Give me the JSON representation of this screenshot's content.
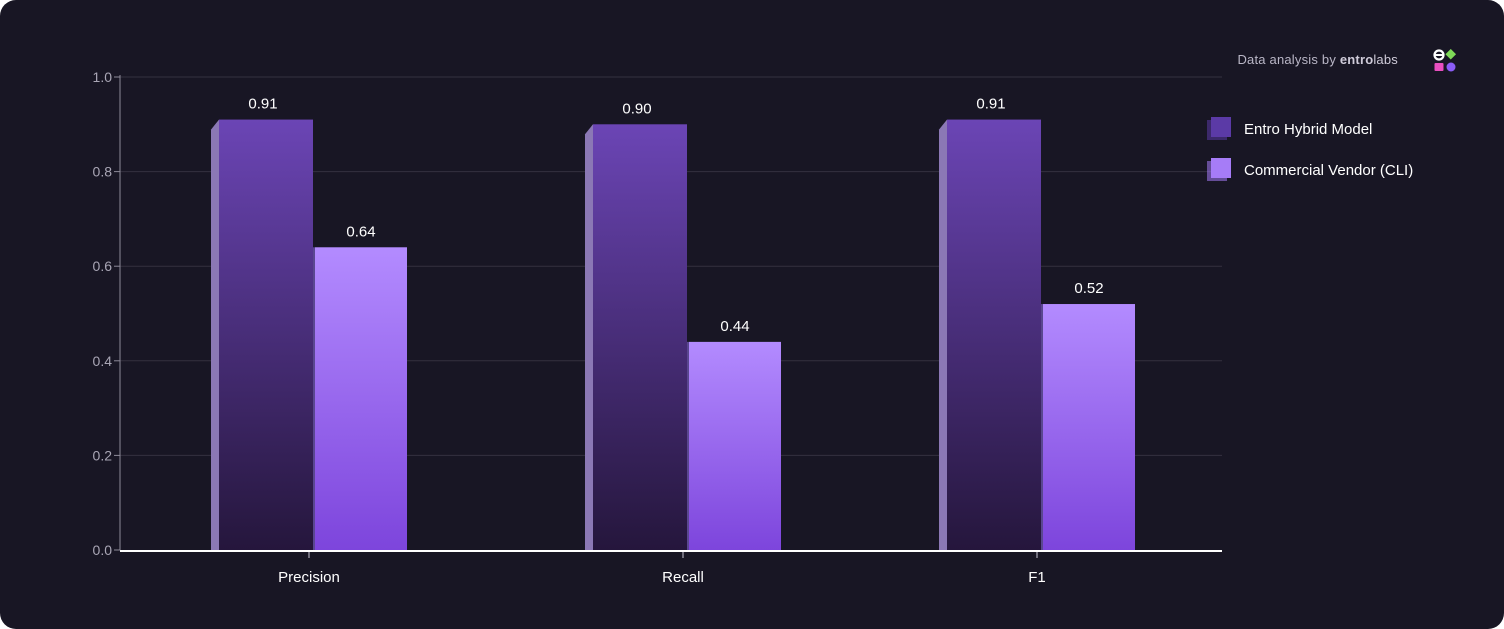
{
  "brand": {
    "prefix": "Data analysis by ",
    "name_bold": "entro",
    "name_light": "labs"
  },
  "chart_data": {
    "type": "bar",
    "categories": [
      "Precision",
      "Recall",
      "F1"
    ],
    "series": [
      {
        "name": "Entro Hybrid Model",
        "values": [
          0.91,
          0.9,
          0.91
        ],
        "labels": [
          "0.91",
          "0.90",
          "0.91"
        ]
      },
      {
        "name": "Commercial Vendor (CLI)",
        "values": [
          0.64,
          0.44,
          0.52
        ],
        "labels": [
          "0.64",
          "0.44",
          "0.52"
        ]
      }
    ],
    "ylim": [
      0,
      1
    ],
    "yticks": [
      "0.0",
      "0.2",
      "0.4",
      "0.6",
      "0.8",
      "1.0"
    ],
    "grid": true,
    "legend_position": "right",
    "colors": {
      "series1_top": "#6b45b5",
      "series1_bottom": "#25163c",
      "series2_top": "#b38bff",
      "series2_bottom": "#7d45dc"
    }
  },
  "legend": {
    "items": [
      {
        "label": "Entro Hybrid Model",
        "color": "#5b3aa6"
      },
      {
        "label": "Commercial Vendor (CLI)",
        "color": "#a67cf7"
      }
    ]
  }
}
